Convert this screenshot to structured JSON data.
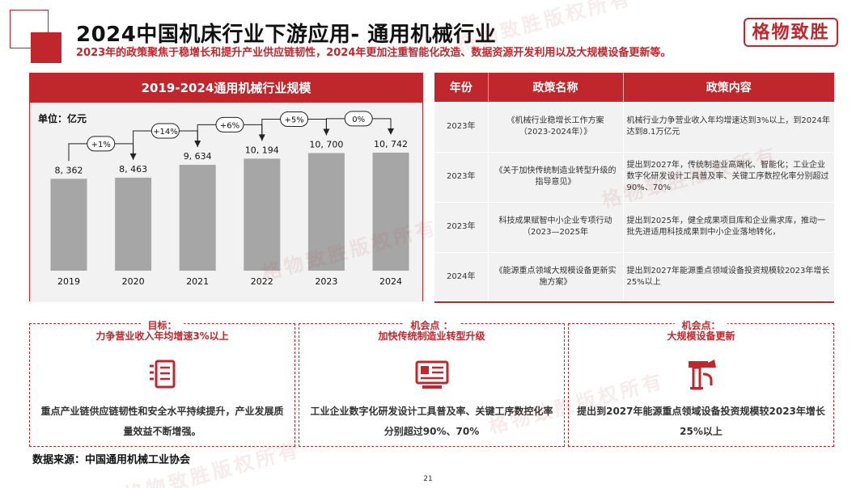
{
  "header": {
    "title": "2024中国机床行业下游应用- 通用机械行业",
    "subtitle": "2023年的政策聚焦于稳增长和提升产业供应链韧性，2024年更加注重智能化改造、数据资源开发利用以及大规模设备更新等。",
    "logo_text": "格物致胜"
  },
  "chart_panel": {
    "title": "2019-2024通用机械行业规模",
    "unit_label": "单位：亿元"
  },
  "chart_data": {
    "type": "bar",
    "title": "2019-2024通用机械行业规模",
    "unit": "亿元",
    "categories": [
      "2019",
      "2020",
      "2021",
      "2022",
      "2023",
      "2024"
    ],
    "values": [
      8362,
      8463,
      9634,
      10194,
      10700,
      10742
    ],
    "value_labels": [
      "8, 362",
      "8, 463",
      "9, 634",
      "10, 194",
      "10, 700",
      "10, 742"
    ],
    "growth_labels": [
      "+1%",
      "+14%",
      "+6%",
      "+5%",
      "0%"
    ],
    "bar_color": "#a6a6a6",
    "annotation_color": "#222222"
  },
  "policy_table": {
    "headers": [
      "年份",
      "政策名称",
      "政策内容"
    ],
    "rows": [
      {
        "year": "2023年",
        "name": "《机械行业稳增长工作方案（2023-2024年）》",
        "content": "机械行业力争营业收入年均增速达到3%以上，到2024年达到8.1万亿元"
      },
      {
        "year": "2023年",
        "name": "《关于加快传统制造业转型升级的指导意见》",
        "content": "提出到2027年，传统制造业高端化、智能化；工业企业数字化研发设计工具普及率、关键工序数控化率分别超过90%、70%"
      },
      {
        "year": "2023年",
        "name": "科技成果赋智中小企业专项行动（2023—2025年",
        "content": "提出到2025年，健全成果项目库和企业需求库，推动一批先进适用科技成果到中小企业落地转化，"
      },
      {
        "year": "2024年",
        "name": "《能源重点领域大规模设备更新实施方案》",
        "content": "提出到2027年能源重点领域设备投资规模较2023年增长25%以上"
      }
    ]
  },
  "cards": [
    {
      "label": "目标：",
      "title": "力争营业收入年均增速3%以上",
      "icon": "checklist-icon",
      "desc": "重点产业链供应链韧性和安全水平持续提升，产业发展质量效益不断增强。"
    },
    {
      "label": "机会点 ：",
      "title": "加快传统制造业转型升级",
      "icon": "monitor-icon",
      "desc": "工业企业数字化研发设计工具普及率、关键工序数控化率分别超过90%、70%"
    },
    {
      "label": "机会点：",
      "title": "大规模设备更新",
      "icon": "machine-icon",
      "desc": "提出到2027年能源重点领域设备投资规模较2023年增长25%以上"
    }
  ],
  "footer": {
    "data_source": "数据来源：中国通用机械工业协会",
    "page_number": "21"
  },
  "watermark_text": "格物致胜版权所有",
  "colors": {
    "accent": "#c0272d",
    "panel_bg": "#f2f2f2",
    "bar": "#a6a6a6"
  }
}
